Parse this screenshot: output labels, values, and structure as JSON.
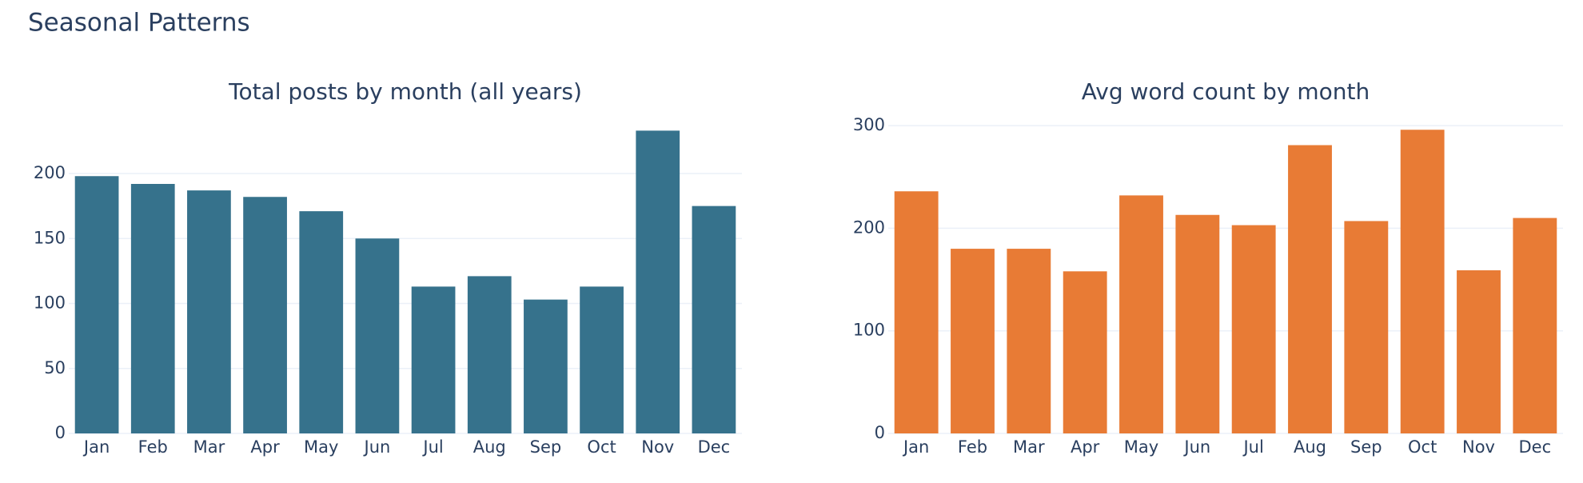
{
  "title": "Seasonal Patterns",
  "chart_data": [
    {
      "type": "bar",
      "title": "Total posts by month (all years)",
      "categories": [
        "Jan",
        "Feb",
        "Mar",
        "Apr",
        "May",
        "Jun",
        "Jul",
        "Aug",
        "Sep",
        "Oct",
        "Nov",
        "Dec"
      ],
      "values": [
        198,
        192,
        187,
        182,
        171,
        150,
        113,
        121,
        103,
        113,
        233,
        175
      ],
      "color": "#36728c",
      "ylim": [
        0,
        240
      ],
      "yticks": [
        0,
        50,
        100,
        150,
        200
      ],
      "grid": true
    },
    {
      "type": "bar",
      "title": "Avg word count by month",
      "categories": [
        "Jan",
        "Feb",
        "Mar",
        "Apr",
        "May",
        "Jun",
        "Jul",
        "Aug",
        "Sep",
        "Oct",
        "Nov",
        "Dec"
      ],
      "values": [
        236,
        180,
        180,
        158,
        232,
        213,
        203,
        281,
        207,
        296,
        159,
        210
      ],
      "color": "#e87b35",
      "ylim": [
        0,
        304
      ],
      "yticks": [
        0,
        100,
        200,
        300
      ],
      "grid": true
    }
  ]
}
